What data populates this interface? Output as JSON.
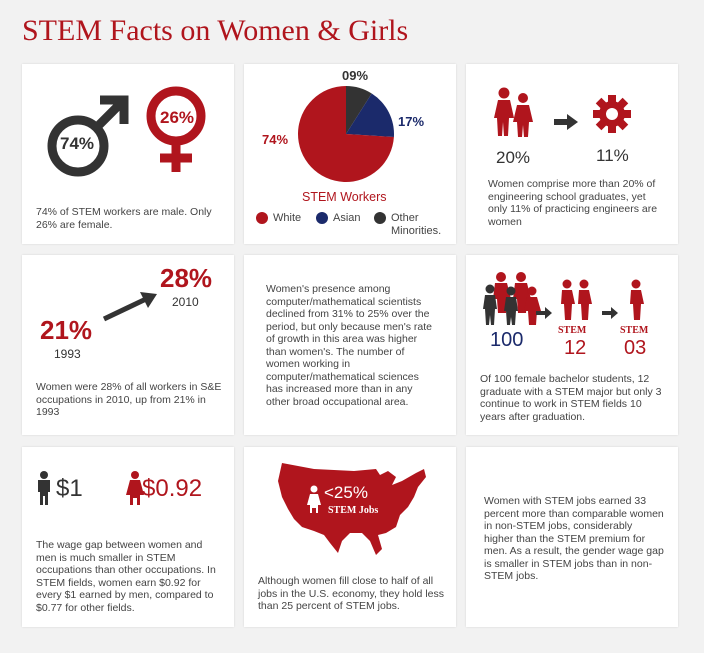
{
  "title": "STEM Facts on Women & Girls",
  "colors": {
    "accent": "#b0151d",
    "dark": "#333333",
    "navy": "#1b2a6b"
  },
  "card1": {
    "male_pct": "74%",
    "female_pct": "26%",
    "text": "74% of STEM workers are male. Only 26% are female."
  },
  "card2": {
    "chart_data": {
      "type": "pie",
      "title": "STEM Workers",
      "slices": [
        {
          "label": "White",
          "value": 74,
          "display": "74%",
          "color": "#b0151d"
        },
        {
          "label": "Asian",
          "value": 17,
          "display": "17%",
          "color": "#1b2a6b"
        },
        {
          "label": "Other Minorities.",
          "value": 9,
          "display": "09%",
          "color": "#333333"
        }
      ],
      "legend_placement": "bottom"
    },
    "legend": [
      "White",
      "Asian",
      "Other",
      "Minorities."
    ]
  },
  "card3": {
    "grad_pct": "20%",
    "eng_pct": "11%",
    "text": "Women comprise more than 20% of engineering school graduates, yet only 11% of practicing engineers are women"
  },
  "card4": {
    "low_value": "21%",
    "low_year": "1993",
    "high_value": "28%",
    "high_year": "2010",
    "text": "Women were 28% of all workers in S&E occupations in 2010, up from 21% in 1993"
  },
  "card5": {
    "text": "Women's presence among computer/mathematical scientists declined from 31% to 25% over the period, but only because men's rate of growth in this area was higher than women's. The number of women working in computer/mathematical sciences has increased more than in any other broad occupational area."
  },
  "card6": {
    "count_all": "100",
    "stem_label_1": "STEM",
    "count_stem": "12",
    "stem_label_2": "STEM",
    "count_stay": "03",
    "text": "Of 100 female bachelor students, 12 graduate with a STEM major but only 3 continue to work in STEM fields 10 years after graduation."
  },
  "card7": {
    "men_amount": "$1",
    "women_amount": "$0.92",
    "text": "The wage gap between women and men is much smaller in STEM occupations than other occupations. In STEM fields, women earn $0.92 for every $1 earned by men, compared to $0.77 for other fields."
  },
  "card8": {
    "pct": "<25%",
    "label": "STEM Jobs",
    "text": "Although women fill close to half of all jobs in the U.S. economy, they hold less than 25 percent of STEM jobs."
  },
  "card9": {
    "text": "Women with STEM jobs earned 33 percent more than comparable women in non-STEM jobs, considerably higher than the STEM premium for men. As a result, the gender wage gap is smaller in STEM jobs than in non-STEM jobs."
  }
}
